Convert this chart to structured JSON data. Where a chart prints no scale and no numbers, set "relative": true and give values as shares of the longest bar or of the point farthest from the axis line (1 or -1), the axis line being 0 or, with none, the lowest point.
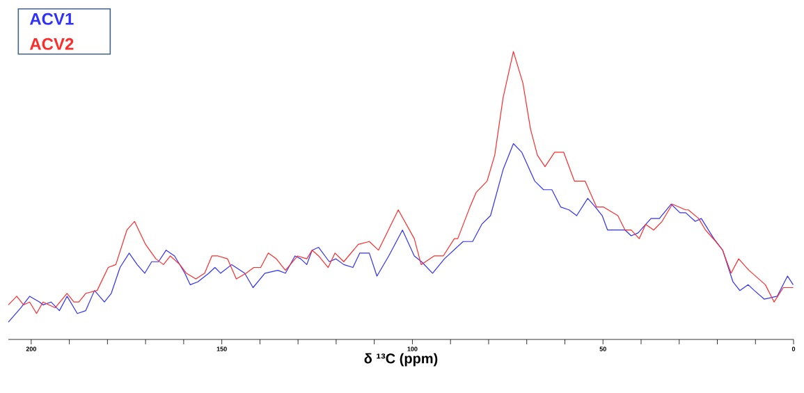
{
  "chart_data": {
    "type": "line",
    "relative": true,
    "xlabel": "δ ¹³C (ppm)",
    "legend": "top left",
    "xlim": [
      206,
      0
    ],
    "xticks": [
      200,
      {
        "value": 190,
        "label": null
      },
      {
        "value": 180,
        "label": null
      },
      {
        "value": 170,
        "label": null
      },
      {
        "value": 160,
        "label": null
      },
      150,
      {
        "value": 140,
        "label": null
      },
      {
        "value": 130,
        "label": null
      },
      {
        "value": 120,
        "label": null
      },
      {
        "value": 110,
        "label": null
      },
      100,
      {
        "value": 90,
        "label": null
      },
      {
        "value": 80,
        "label": null
      },
      {
        "value": 70,
        "label": null
      },
      {
        "value": 60,
        "label": null
      },
      50,
      {
        "value": 40,
        "label": null
      },
      {
        "value": 30,
        "label": null
      },
      {
        "value": 20,
        "label": null
      },
      {
        "value": 10,
        "label": null
      },
      0
    ],
    "series": [
      {
        "name": "ACV1",
        "color": "#2f2fff",
        "x": [
          206.0,
          202.7,
          200.4,
          197.8,
          196.9,
          194.8,
          192.6,
          190.6,
          187.9,
          185.7,
          183.4,
          180.8,
          179.0,
          176.7,
          174.3,
          172.2,
          170.2,
          168.4,
          166.6,
          164.6,
          162.4,
          159.7,
          158.3,
          156.3,
          153.4,
          151.8,
          150.3,
          147.4,
          144.0,
          141.8,
          138.7,
          135.3,
          133.3,
          130.8,
          129.3,
          127.7,
          126.3,
          124.6,
          121.8,
          120.1,
          118.0,
          115.6,
          113.8,
          111.3,
          109.3,
          106.2,
          102.6,
          99.5,
          97.6,
          94.7,
          91.6,
          86.7,
          84.2,
          81.8,
          79.5,
          76.2,
          73.5,
          71.3,
          67.9,
          65.6,
          63.4,
          61.1,
          58.9,
          56.9,
          54.0,
          52.0,
          50.2,
          48.8,
          47.9,
          44.2,
          42.6,
          40.8,
          37.4,
          35.2,
          32.1,
          29.8,
          28.3,
          25.8,
          24.2,
          20.9,
          18.6,
          15.9,
          14.1,
          11.9,
          10.3,
          7.7,
          4.3,
          1.6,
          0.1
        ],
        "values": [
          0.06,
          0.11,
          0.15,
          0.13,
          0.12,
          0.13,
          0.1,
          0.15,
          0.09,
          0.1,
          0.17,
          0.13,
          0.16,
          0.25,
          0.3,
          0.26,
          0.23,
          0.27,
          0.27,
          0.31,
          0.29,
          0.23,
          0.19,
          0.2,
          0.23,
          0.25,
          0.23,
          0.26,
          0.23,
          0.18,
          0.23,
          0.24,
          0.23,
          0.29,
          0.28,
          0.26,
          0.31,
          0.32,
          0.27,
          0.28,
          0.26,
          0.25,
          0.3,
          0.3,
          0.22,
          0.29,
          0.38,
          0.29,
          0.27,
          0.23,
          0.28,
          0.34,
          0.34,
          0.4,
          0.43,
          0.59,
          0.68,
          0.65,
          0.55,
          0.52,
          0.52,
          0.46,
          0.45,
          0.43,
          0.49,
          0.46,
          0.43,
          0.38,
          0.38,
          0.38,
          0.36,
          0.37,
          0.42,
          0.42,
          0.47,
          0.44,
          0.44,
          0.41,
          0.42,
          0.35,
          0.31,
          0.2,
          0.17,
          0.19,
          0.17,
          0.14,
          0.15,
          0.22,
          0.19
        ]
      },
      {
        "name": "ACV2",
        "color": "#ff2a2a",
        "x": [
          206.0,
          203.8,
          202.0,
          200.4,
          198.6,
          196.9,
          193.7,
          190.6,
          188.8,
          187.5,
          185.7,
          182.7,
          179.8,
          177.8,
          174.9,
          172.9,
          170.0,
          167.3,
          165.3,
          163.5,
          161.0,
          159.3,
          156.8,
          154.5,
          152.6,
          151.0,
          148.5,
          146.2,
          143.6,
          141.6,
          139.8,
          137.8,
          135.7,
          133.3,
          130.1,
          127.7,
          126.3,
          124.6,
          122.1,
          120.3,
          118.0,
          114.2,
          111.3,
          108.9,
          103.7,
          99.5,
          97.7,
          94.3,
          91.9,
          89.0,
          88.1,
          84.9,
          83.3,
          80.4,
          78.4,
          76.2,
          73.5,
          71.0,
          69.0,
          67.2,
          65.2,
          62.7,
          60.3,
          57.5,
          54.7,
          51.7,
          49.9,
          46.1,
          44.2,
          42.6,
          40.5,
          38.8,
          36.7,
          34.5,
          31.8,
          28.3,
          27.6,
          24.9,
          23.1,
          20.4,
          18.6,
          16.4,
          14.4,
          11.7,
          7.4,
          5.1,
          2.7,
          0.1
        ],
        "values": [
          0.12,
          0.15,
          0.12,
          0.13,
          0.09,
          0.13,
          0.11,
          0.16,
          0.13,
          0.13,
          0.16,
          0.17,
          0.25,
          0.26,
          0.38,
          0.41,
          0.33,
          0.28,
          0.26,
          0.29,
          0.26,
          0.23,
          0.21,
          0.23,
          0.29,
          0.29,
          0.28,
          0.21,
          0.23,
          0.25,
          0.25,
          0.3,
          0.28,
          0.24,
          0.29,
          0.28,
          0.31,
          0.29,
          0.25,
          0.3,
          0.27,
          0.33,
          0.34,
          0.31,
          0.45,
          0.35,
          0.26,
          0.29,
          0.29,
          0.35,
          0.35,
          0.46,
          0.51,
          0.55,
          0.64,
          0.84,
          1.0,
          0.89,
          0.73,
          0.64,
          0.6,
          0.65,
          0.65,
          0.55,
          0.55,
          0.46,
          0.46,
          0.43,
          0.38,
          0.38,
          0.35,
          0.4,
          0.38,
          0.41,
          0.47,
          0.45,
          0.45,
          0.42,
          0.38,
          0.34,
          0.31,
          0.23,
          0.28,
          0.24,
          0.19,
          0.13,
          0.18,
          0.18
        ]
      }
    ]
  }
}
